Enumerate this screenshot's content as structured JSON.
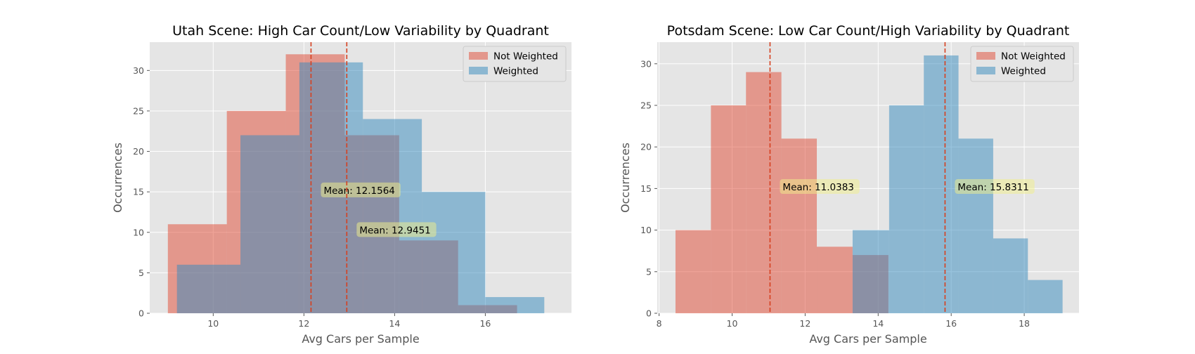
{
  "chart_data": [
    {
      "type": "histogram",
      "title": "Utah Scene: High Car Count/Low Variability by Quadrant",
      "xlabel": "Avg Cars per Sample",
      "ylabel": "Occurrences",
      "xlim": [
        8.6,
        17.9
      ],
      "ylim": [
        0,
        33.5
      ],
      "xticks": [
        10,
        12,
        14,
        16
      ],
      "yticks": [
        0,
        5,
        10,
        15,
        20,
        25,
        30
      ],
      "grid": true,
      "legend_position": "top-right",
      "series": [
        {
          "name": "Not Weighted",
          "color": "#E24A33",
          "bin_edges": [
            9.0,
            10.3,
            11.6,
            12.9,
            14.1,
            15.4,
            16.7
          ],
          "counts": [
            11,
            25,
            32,
            22,
            9,
            1
          ]
        },
        {
          "name": "Weighted",
          "color": "#348ABD",
          "bin_edges": [
            9.2,
            10.6,
            11.9,
            13.3,
            14.6,
            16.0,
            17.3
          ],
          "counts": [
            6,
            22,
            31,
            24,
            15,
            2
          ]
        }
      ],
      "mean_lines": [
        {
          "x": 12.1564,
          "label": "Mean: 12.1564",
          "label_y": 15.2
        },
        {
          "x": 12.9451,
          "label": "Mean: 12.9451",
          "label_y": 10.3
        }
      ]
    },
    {
      "type": "histogram",
      "title": "Potsdam Scene: Low Car Count/High Variability by Quadrant",
      "xlabel": "Avg Cars per Sample",
      "ylabel": "Occurrences",
      "xlim": [
        7.95,
        19.5
      ],
      "ylim": [
        0,
        32.6
      ],
      "xticks": [
        8,
        10,
        12,
        14,
        16,
        18
      ],
      "yticks": [
        0,
        5,
        10,
        15,
        20,
        25,
        30
      ],
      "grid": true,
      "legend_position": "top-right",
      "series": [
        {
          "name": "Not Weighted",
          "color": "#E24A33",
          "bin_edges": [
            8.45,
            9.42,
            10.38,
            11.35,
            12.32,
            13.3,
            14.28
          ],
          "counts": [
            10,
            25,
            29,
            21,
            8,
            7
          ]
        },
        {
          "name": "Weighted",
          "color": "#348ABD",
          "bin_edges": [
            13.3,
            14.3,
            15.25,
            16.2,
            17.15,
            18.1,
            19.05
          ],
          "counts": [
            10,
            25,
            31,
            21,
            9,
            4
          ]
        }
      ],
      "mean_lines": [
        {
          "x": 11.0383,
          "label": "Mean: 11.0383",
          "label_y": 15.2
        },
        {
          "x": 15.8311,
          "label": "Mean: 15.8311",
          "label_y": 15.2
        }
      ]
    }
  ]
}
